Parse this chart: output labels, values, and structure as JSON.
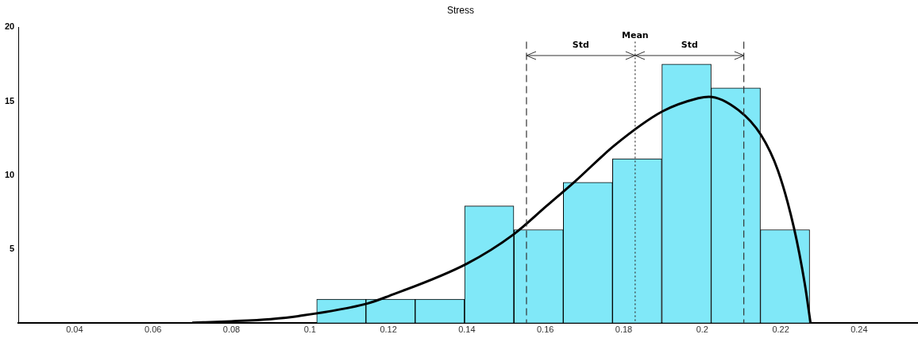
{
  "chart_data": {
    "type": "histogram",
    "title": "Stress",
    "bins": [
      0.1017,
      0.1143,
      0.1268,
      0.1394,
      0.152,
      0.1646,
      0.1771,
      0.1897,
      0.2023,
      0.2148,
      0.2274
    ],
    "values": [
      1.6,
      1.6,
      1.6,
      7.9,
      6.3,
      9.5,
      11.1,
      17.5,
      15.9,
      6.3
    ],
    "color": "#80e8f8",
    "series": [
      {
        "type": "line",
        "color": "#000000",
        "x": [
          0.07,
          0.08,
          0.09,
          0.097,
          0.1146,
          0.12,
          0.14,
          0.152,
          0.1603,
          0.1677,
          0.1776,
          0.1898,
          0.199,
          0.2017,
          0.2092,
          0.215,
          0.2193,
          0.2234,
          0.2261,
          0.2276
        ],
        "values": [
          0,
          0.1,
          0.25,
          0.45,
          1.3,
          1.8,
          4.0,
          6.0,
          7.9,
          9.6,
          12.0,
          14.3,
          15.2,
          15.3,
          14.4,
          12.7,
          10.3,
          6.4,
          2.7,
          0
        ]
      }
    ],
    "xlim": [
      0.0257,
      0.255
    ],
    "xticks": [
      0.04,
      0.06,
      0.08,
      0.1,
      0.12,
      0.14,
      0.16,
      0.18,
      0.2,
      0.22,
      0.24
    ],
    "ylim": [
      0,
      20
    ],
    "yticks": [
      5,
      10,
      15,
      20
    ],
    "ref_lines": [
      {
        "axis": "x",
        "value": 0.1552,
        "label": null,
        "line_style": "dashed"
      },
      {
        "axis": "x",
        "value": 0.1829,
        "label": "Mean",
        "line_style": "dotted"
      },
      {
        "axis": "x",
        "value": 0.2106,
        "label": null,
        "line_style": "dashed"
      }
    ],
    "annotations": [
      "Std",
      "Std"
    ],
    "marker": "none",
    "line_style": "solid",
    "grid": false,
    "legend": false
  }
}
